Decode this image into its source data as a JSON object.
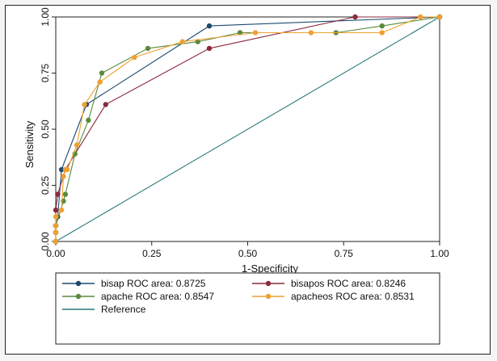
{
  "chart_data": {
    "type": "line",
    "title": "",
    "xlabel": "1-Specificity",
    "ylabel": "Sensitivity",
    "xlim": [
      0,
      1
    ],
    "ylim": [
      0,
      1
    ],
    "x_ticks": [
      "0.00",
      "0.25",
      "0.50",
      "0.75",
      "1.00"
    ],
    "y_ticks": [
      "0.00",
      "0.25",
      "0.50",
      "0.75",
      "1.00"
    ],
    "grid": false,
    "legend_position": "bottom",
    "series": [
      {
        "name": "bisap ROC area: 0.8725",
        "color": "#1a4a6e",
        "markers": true,
        "x": [
          0.0,
          0.0,
          0.0,
          0.005,
          0.015,
          0.08,
          0.4,
          1.0
        ],
        "y": [
          0.0,
          0.04,
          0.07,
          0.11,
          0.32,
          0.61,
          0.96,
          1.0
        ]
      },
      {
        "name": "bisapos ROC area: 0.8246",
        "color": "#8b2a3c",
        "markers": true,
        "x": [
          0.0,
          0.0,
          0.0,
          0.0,
          0.005,
          0.025,
          0.13,
          0.4,
          0.78,
          1.0
        ],
        "y": [
          0.0,
          0.04,
          0.07,
          0.14,
          0.21,
          0.32,
          0.61,
          0.86,
          1.0,
          1.0
        ]
      },
      {
        "name": "apache ROC area: 0.8547",
        "color": "#5a8a3c",
        "markers": true,
        "x": [
          0.0,
          0.0,
          0.0,
          0.02,
          0.025,
          0.05,
          0.085,
          0.12,
          0.24,
          0.37,
          0.48,
          0.73,
          0.85,
          1.0
        ],
        "y": [
          0.0,
          0.04,
          0.07,
          0.18,
          0.21,
          0.39,
          0.54,
          0.75,
          0.86,
          0.89,
          0.93,
          0.93,
          0.96,
          1.0
        ]
      },
      {
        "name": "apacheos ROC area: 0.8531",
        "color": "#f0a030",
        "markers": true,
        "x": [
          0.0,
          0.0,
          0.0,
          0.0,
          0.015,
          0.02,
          0.025,
          0.03,
          0.055,
          0.075,
          0.115,
          0.205,
          0.33,
          0.52,
          0.665,
          0.85,
          0.95,
          1.0
        ],
        "y": [
          0.0,
          0.04,
          0.07,
          0.11,
          0.14,
          0.29,
          0.32,
          0.32,
          0.43,
          0.61,
          0.71,
          0.82,
          0.89,
          0.93,
          0.93,
          0.93,
          1.0,
          1.0
        ]
      },
      {
        "name": "Reference",
        "color": "#2a7a7a",
        "markers": false,
        "x": [
          0,
          1
        ],
        "y": [
          0,
          1
        ]
      }
    ]
  }
}
